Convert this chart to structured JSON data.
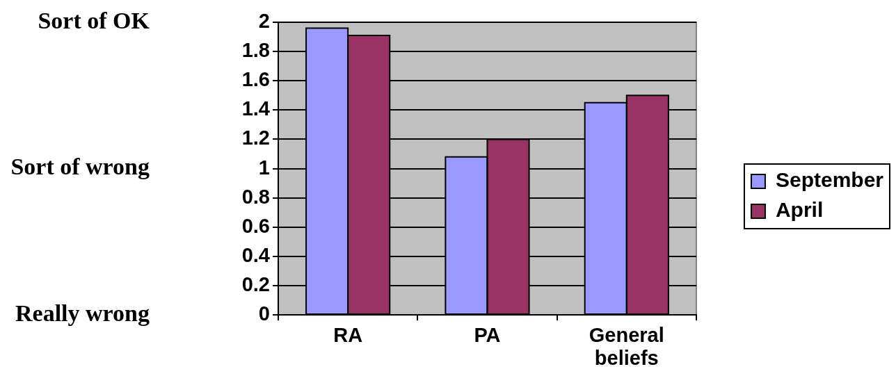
{
  "chart_data": {
    "type": "bar",
    "categories": [
      "RA",
      "PA",
      "General beliefs"
    ],
    "series": [
      {
        "name": "September",
        "color": "#9999ff",
        "values": [
          1.96,
          1.08,
          1.45
        ]
      },
      {
        "name": "April",
        "color": "#993366",
        "values": [
          1.91,
          1.2,
          1.5
        ]
      }
    ],
    "ylim": [
      0,
      2
    ],
    "yticks": [
      0,
      0.2,
      0.4,
      0.6,
      0.8,
      1,
      1.2,
      1.4,
      1.6,
      1.8,
      2
    ],
    "y2_categories": [
      "Sort of OK",
      "Sort of wrong",
      "Really wrong"
    ],
    "grid": "y",
    "legend": "right"
  }
}
